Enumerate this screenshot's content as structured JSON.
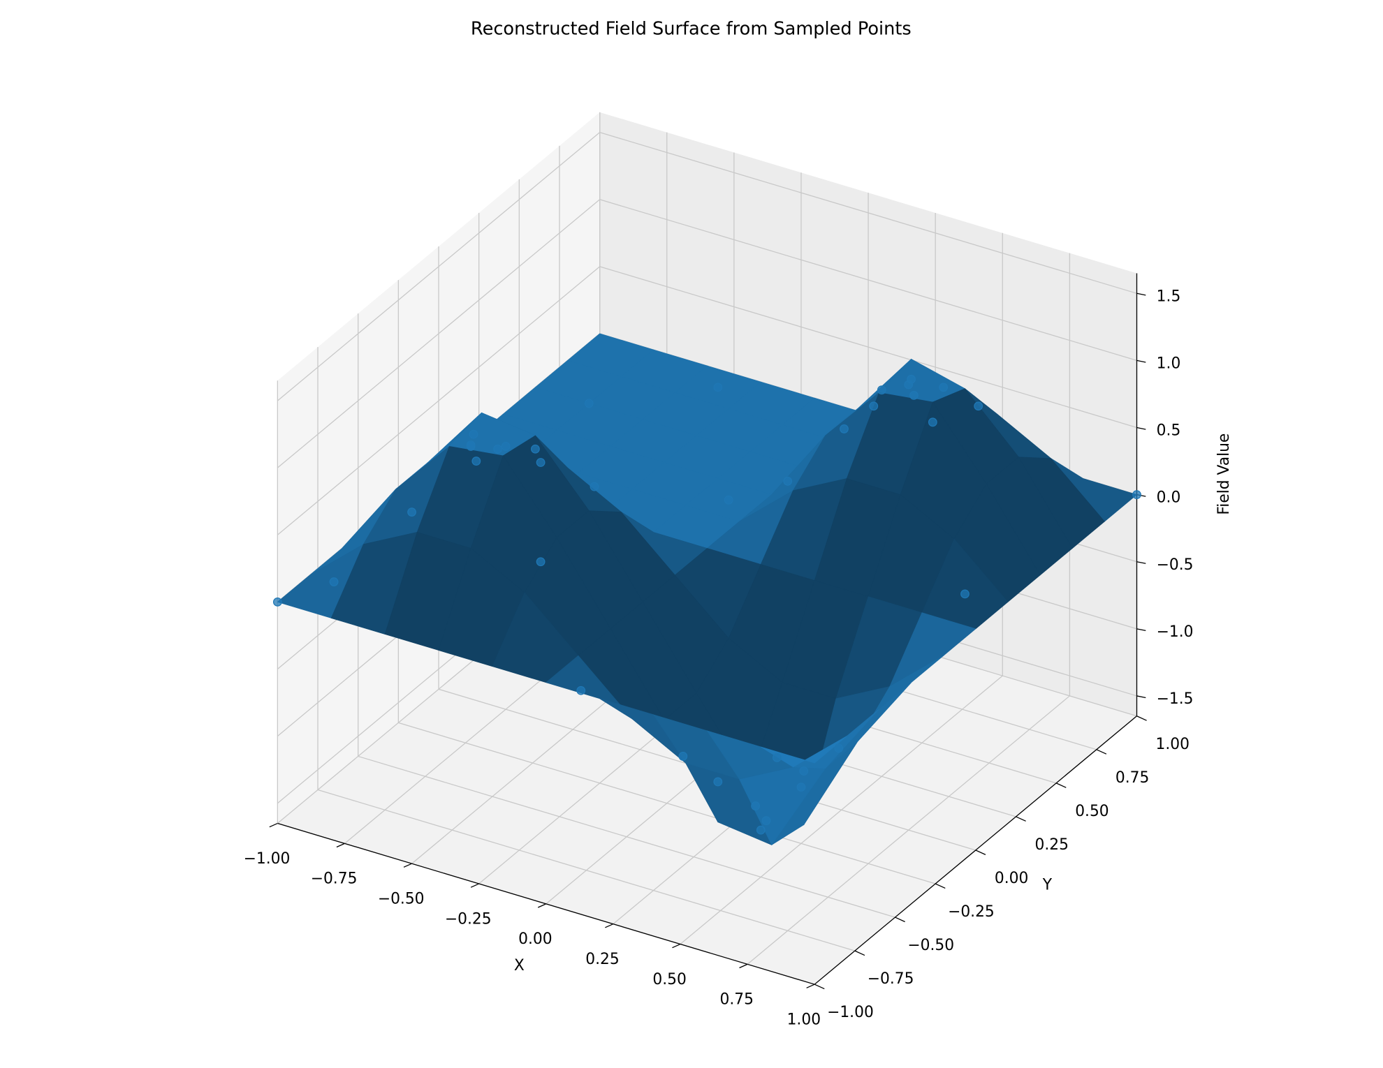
{
  "chart_data": {
    "type": "surface",
    "title": "Reconstructed Field Surface from Sampled Points",
    "xlabel": "X",
    "ylabel": "Y",
    "zlabel": "Field Value",
    "color": "#1f77b4",
    "grid": true,
    "xlim": [
      -1,
      1
    ],
    "ylim": [
      -1,
      1
    ],
    "zlim": [
      -1.65,
      1.65
    ],
    "xticks": [
      {
        "value": -1,
        "label": "−1.00"
      },
      {
        "value": -0.75,
        "label": "−0.75"
      },
      {
        "value": -0.5,
        "label": "−0.50"
      },
      {
        "value": -0.25,
        "label": "−0.25"
      },
      {
        "value": 0,
        "label": "0.00"
      },
      {
        "value": 0.25,
        "label": "0.25"
      },
      {
        "value": 0.5,
        "label": "0.50"
      },
      {
        "value": 0.75,
        "label": "0.75"
      },
      {
        "value": 1,
        "label": "1.00"
      }
    ],
    "yticks": [
      {
        "value": -1,
        "label": "−1.00"
      },
      {
        "value": -0.75,
        "label": "−0.75"
      },
      {
        "value": -0.5,
        "label": "−0.50"
      },
      {
        "value": -0.25,
        "label": "−0.25"
      },
      {
        "value": 0,
        "label": "0.00"
      },
      {
        "value": 0.25,
        "label": "0.25"
      },
      {
        "value": 0.5,
        "label": "0.50"
      },
      {
        "value": 0.75,
        "label": "0.75"
      },
      {
        "value": 1,
        "label": "1.00"
      }
    ],
    "zticks": [
      {
        "value": -1.5,
        "label": "−1.5"
      },
      {
        "value": -1,
        "label": "−1.0"
      },
      {
        "value": -0.5,
        "label": "−0.5"
      },
      {
        "value": 0,
        "label": "0.0"
      },
      {
        "value": 0.5,
        "label": "0.5"
      },
      {
        "value": 1,
        "label": "1.0"
      },
      {
        "value": 1.5,
        "label": "1.5"
      }
    ],
    "x": [
      -1,
      -0.8,
      -0.6,
      -0.4,
      -0.2,
      0,
      0.2,
      0.4,
      0.6,
      0.8,
      1
    ],
    "y": [
      -1,
      -0.8,
      -0.6,
      -0.4,
      -0.2,
      0,
      0.2,
      0.4,
      0.6,
      0.8,
      1
    ],
    "z": [
      [
        0,
        0,
        0,
        0,
        0,
        0,
        0,
        0,
        0,
        0,
        0
      ],
      [
        0,
        0.35,
        0.56,
        0.56,
        0.35,
        0,
        -0.35,
        -0.56,
        -0.56,
        -0.35,
        0
      ],
      [
        0,
        0.56,
        1.0,
        1.05,
        0.56,
        0,
        -0.56,
        -1.2,
        -1.25,
        -0.56,
        0
      ],
      [
        0,
        0.56,
        1.05,
        1.0,
        0.56,
        0,
        -0.56,
        -1.1,
        -1.3,
        -0.56,
        0
      ],
      [
        0,
        0.35,
        0.56,
        0.56,
        0.35,
        0,
        -0.35,
        -0.56,
        -0.56,
        -0.35,
        0
      ],
      [
        0,
        0,
        0,
        0,
        0,
        0,
        0,
        0,
        0,
        0,
        0
      ],
      [
        0,
        0,
        0,
        0,
        0,
        0,
        0.35,
        0.56,
        0.56,
        0.35,
        0
      ],
      [
        0,
        0,
        0,
        0,
        0,
        0,
        0.56,
        1.0,
        1.05,
        0.56,
        0
      ],
      [
        0,
        0,
        0,
        0,
        0,
        0,
        0.56,
        1.05,
        0.95,
        0.56,
        0
      ],
      [
        0,
        0,
        0,
        0,
        0,
        0,
        0.35,
        0.56,
        0.56,
        0.35,
        0
      ],
      [
        0,
        0,
        0,
        0,
        0,
        0,
        0,
        0,
        0,
        0,
        0
      ]
    ],
    "points": {
      "x": [
        -1,
        -0.85,
        -0.6,
        -0.45,
        -0.5,
        -0.4,
        -0.55,
        -0.35,
        -0.7,
        -0.2,
        -0.65,
        -0.3,
        0.45,
        0.5,
        0.55,
        0.4,
        0.6,
        0.35,
        0.65,
        0.3,
        0.2,
        0.5,
        0.45,
        0.55,
        0.6,
        0.4,
        0.65,
        0.7,
        0.3,
        -0.8,
        -0.5,
        -0.1,
        0.1,
        0.8,
        1.0,
        0.9,
        0.0,
        -0.9
      ],
      "y": [
        -1,
        -0.9,
        -0.45,
        -0.5,
        -0.6,
        -0.4,
        -0.55,
        -0.45,
        -0.3,
        -0.7,
        -0.75,
        -0.2,
        0.5,
        0.45,
        0.55,
        0.6,
        0.4,
        0.5,
        0.6,
        0.35,
        0.7,
        -0.5,
        -0.45,
        -0.55,
        -0.4,
        -0.6,
        -0.5,
        -0.35,
        -0.65,
        0.6,
        0.9,
        0.3,
        -0.95,
        -0.9,
        1.0,
        0.1,
        0.5,
        0.2
      ],
      "z": [
        0,
        0.14,
        0.94,
        0.99,
        0.95,
        0.9,
        0.98,
        0.88,
        0.65,
        0.48,
        0.63,
        0.48,
        0.99,
        0.99,
        0.98,
        0.9,
        0.9,
        0.89,
        0.85,
        0.72,
        0.48,
        -1.3,
        -1.2,
        -1.15,
        -0.9,
        -0.9,
        -0.89,
        -0.72,
        -0.72,
        0,
        0,
        0,
        -0.05,
        -0.18,
        0,
        0.1,
        0,
        0
      ]
    }
  }
}
